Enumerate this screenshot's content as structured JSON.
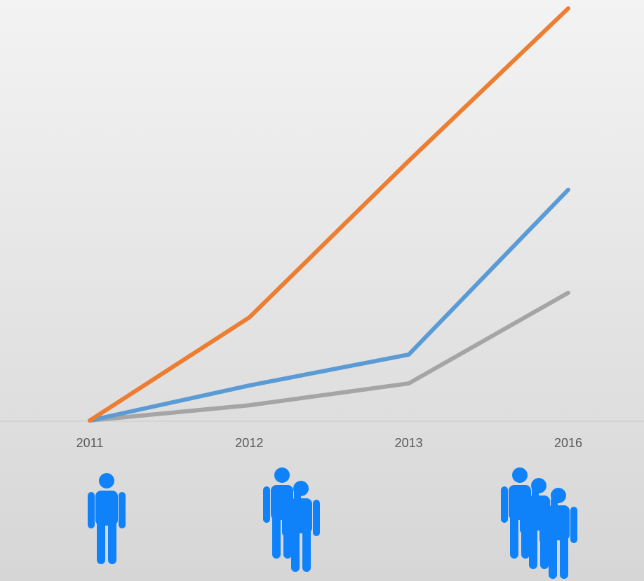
{
  "chart_data": {
    "type": "line",
    "categories": [
      "2011",
      "2012",
      "2013",
      "2016"
    ],
    "series": [
      {
        "color": "#ed7d31",
        "values": [
          0,
          25,
          63,
          100
        ]
      },
      {
        "color": "#5b9bd5",
        "values": [
          0,
          8.5,
          16,
          56
        ]
      },
      {
        "color": "#a5a5a5",
        "values": [
          0,
          3.7,
          9,
          31
        ]
      }
    ],
    "ylim": [
      0,
      100
    ]
  }
}
